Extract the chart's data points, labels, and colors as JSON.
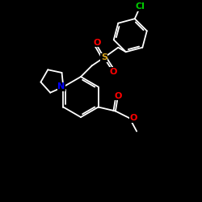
{
  "background_color": "#000000",
  "atom_colors": {
    "N": "#0000FF",
    "O": "#FF0000",
    "S": "#DAA520",
    "Cl": "#00CC00"
  },
  "bond_color": "#FFFFFF",
  "lw": 1.3,
  "figsize": [
    2.5,
    2.5
  ],
  "dpi": 100
}
